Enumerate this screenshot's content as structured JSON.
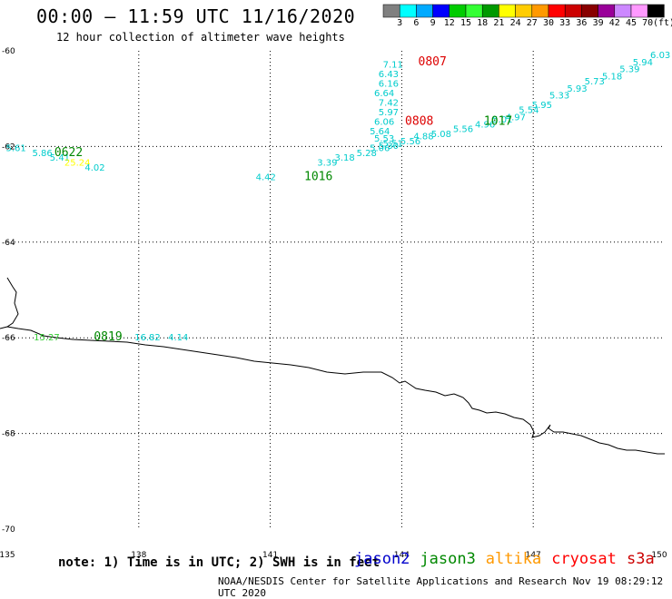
{
  "header": {
    "title": "00:00 – 11:59 UTC 11/16/2020",
    "subtitle": "12 hour collection of altimeter wave heights"
  },
  "colorbar": {
    "labels": [
      "3",
      "6",
      "9",
      "12",
      "15",
      "18",
      "21",
      "24",
      "27",
      "30",
      "33",
      "36",
      "39",
      "42",
      "45",
      "70"
    ],
    "unit": "(ft)",
    "colors": [
      "#808080",
      "#00ffff",
      "#00aaff",
      "#0000ff",
      "#00cc00",
      "#33ff33",
      "#009900",
      "#ffff00",
      "#ffcc00",
      "#ff9900",
      "#ff0000",
      "#cc0000",
      "#880000",
      "#990099",
      "#cc88ff",
      "#ff99ff",
      "#000000"
    ]
  },
  "axes": {
    "lon_ticks": [
      "135",
      "138",
      "141",
      "144",
      "147",
      "150"
    ],
    "lat_ticks": [
      "-60",
      "-62",
      "-64",
      "-66",
      "-68",
      "-70"
    ],
    "lon_range": [
      135,
      150
    ],
    "lat_range": [
      -60,
      -70
    ],
    "grid": "dotted"
  },
  "footer": {
    "note": "note: 1) Time is in UTC; 2) SWH is in feet",
    "satellites": [
      {
        "name": "jason2",
        "color": "#0000cc"
      },
      {
        "name": "jason3",
        "color": "#008800"
      },
      {
        "name": "altika",
        "color": "#ff9900"
      },
      {
        "name": "cryosat",
        "color": "#ff0000"
      },
      {
        "name": "s3a",
        "color": "#cc0000"
      }
    ],
    "credit": "NOAA/NESDIS Center for Satellite Applications and Research   Nov 19 08:29:12 UTC 2020"
  },
  "chart_data": {
    "type": "scatter",
    "title": "00:00 – 11:59 UTC 11/16/2020",
    "subtitle": "12 hour collection of altimeter wave heights",
    "xlim": [
      135,
      150
    ],
    "ylim": [
      -70,
      -60
    ],
    "points": [
      {
        "lon": 135.2,
        "lat": -62.1,
        "label": "5.61",
        "color": "#00cccc"
      },
      {
        "lon": 135.8,
        "lat": -62.2,
        "label": "5.86",
        "color": "#00cccc"
      },
      {
        "lon": 136.2,
        "lat": -62.3,
        "label": "5.41",
        "color": "#00cccc"
      },
      {
        "lon": 136.6,
        "lat": -62.4,
        "label": "25.24",
        "color": "#ffff00"
      },
      {
        "lon": 137.0,
        "lat": -62.5,
        "label": "4.02",
        "color": "#00cccc"
      },
      {
        "lon": 140.9,
        "lat": -62.7,
        "label": "4.42",
        "color": "#00cccc"
      },
      {
        "lon": 142.3,
        "lat": -62.4,
        "label": "3.39",
        "color": "#00cccc"
      },
      {
        "lon": 142.7,
        "lat": -62.3,
        "label": "3.18",
        "color": "#00cccc"
      },
      {
        "lon": 143.2,
        "lat": -62.2,
        "label": "5.28",
        "color": "#00cccc"
      },
      {
        "lon": 143.5,
        "lat": -62.1,
        "label": "5.06",
        "color": "#00cccc"
      },
      {
        "lon": 143.7,
        "lat": -62.05,
        "label": "5.30",
        "color": "#00cccc"
      },
      {
        "lon": 143.8,
        "lat": -62.0,
        "label": "5.51",
        "color": "#00cccc"
      },
      {
        "lon": 144.2,
        "lat": -61.95,
        "label": "5.56",
        "color": "#00cccc"
      },
      {
        "lon": 144.5,
        "lat": -61.85,
        "label": "4.88",
        "color": "#00cccc"
      },
      {
        "lon": 144.9,
        "lat": -61.8,
        "label": "5.08",
        "color": "#00cccc"
      },
      {
        "lon": 145.4,
        "lat": -61.7,
        "label": "5.56",
        "color": "#00cccc"
      },
      {
        "lon": 145.9,
        "lat": -61.6,
        "label": "4.96",
        "color": "#00cccc"
      },
      {
        "lon": 146.3,
        "lat": -61.5,
        "label": "5.01",
        "color": "#00cccc"
      },
      {
        "lon": 146.6,
        "lat": -61.45,
        "label": "4.97",
        "color": "#00cccc"
      },
      {
        "lon": 146.9,
        "lat": -61.3,
        "label": "5.54",
        "color": "#00cccc"
      },
      {
        "lon": 147.2,
        "lat": -61.2,
        "label": "5.95",
        "color": "#00cccc"
      },
      {
        "lon": 147.6,
        "lat": -61.0,
        "label": "5.33",
        "color": "#00cccc"
      },
      {
        "lon": 148.0,
        "lat": -60.85,
        "label": "5.93",
        "color": "#00cccc"
      },
      {
        "lon": 148.4,
        "lat": -60.7,
        "label": "5.73",
        "color": "#00cccc"
      },
      {
        "lon": 148.8,
        "lat": -60.6,
        "label": "5.18",
        "color": "#00cccc"
      },
      {
        "lon": 149.2,
        "lat": -60.45,
        "label": "5.39",
        "color": "#00cccc"
      },
      {
        "lon": 149.5,
        "lat": -60.3,
        "label": "5.94",
        "color": "#00cccc"
      },
      {
        "lon": 149.9,
        "lat": -60.15,
        "label": "6.03",
        "color": "#00cccc"
      },
      {
        "lon": 143.6,
        "lat": -61.9,
        "label": "5.53",
        "color": "#00cccc"
      },
      {
        "lon": 143.5,
        "lat": -61.75,
        "label": "5.64",
        "color": "#00cccc"
      },
      {
        "lon": 143.6,
        "lat": -61.55,
        "label": "6.06",
        "color": "#00cccc"
      },
      {
        "lon": 143.7,
        "lat": -61.35,
        "label": "5.97",
        "color": "#00cccc"
      },
      {
        "lon": 143.7,
        "lat": -61.15,
        "label": "7.42",
        "color": "#00cccc"
      },
      {
        "lon": 143.6,
        "lat": -60.95,
        "label": "6.64",
        "color": "#00cccc"
      },
      {
        "lon": 143.7,
        "lat": -60.75,
        "label": "6.16",
        "color": "#00cccc"
      },
      {
        "lon": 143.7,
        "lat": -60.55,
        "label": "6.43",
        "color": "#00cccc"
      },
      {
        "lon": 143.8,
        "lat": -60.35,
        "label": "7.11",
        "color": "#00cccc"
      },
      {
        "lon": 135.9,
        "lat": -66.05,
        "label": "15.27",
        "color": "#33cc33"
      },
      {
        "lon": 138.2,
        "lat": -66.05,
        "label": "16.82",
        "color": "#00cccc"
      },
      {
        "lon": 138.9,
        "lat": -66.05,
        "label": "4.14",
        "color": "#00cccc"
      }
    ],
    "time_labels": [
      {
        "lon": 136.4,
        "lat": -62.2,
        "label": "0622",
        "color": "#008800"
      },
      {
        "lon": 142.1,
        "lat": -62.7,
        "label": "1016",
        "color": "#008800"
      },
      {
        "lon": 144.7,
        "lat": -60.3,
        "label": "0807",
        "color": "#dd0000"
      },
      {
        "lon": 144.4,
        "lat": -61.55,
        "label": "0808",
        "color": "#dd0000"
      },
      {
        "lon": 146.2,
        "lat": -61.55,
        "label": "1017",
        "color": "#008800"
      },
      {
        "lon": 137.3,
        "lat": -66.05,
        "label": "0819",
        "color": "#008800"
      }
    ]
  }
}
